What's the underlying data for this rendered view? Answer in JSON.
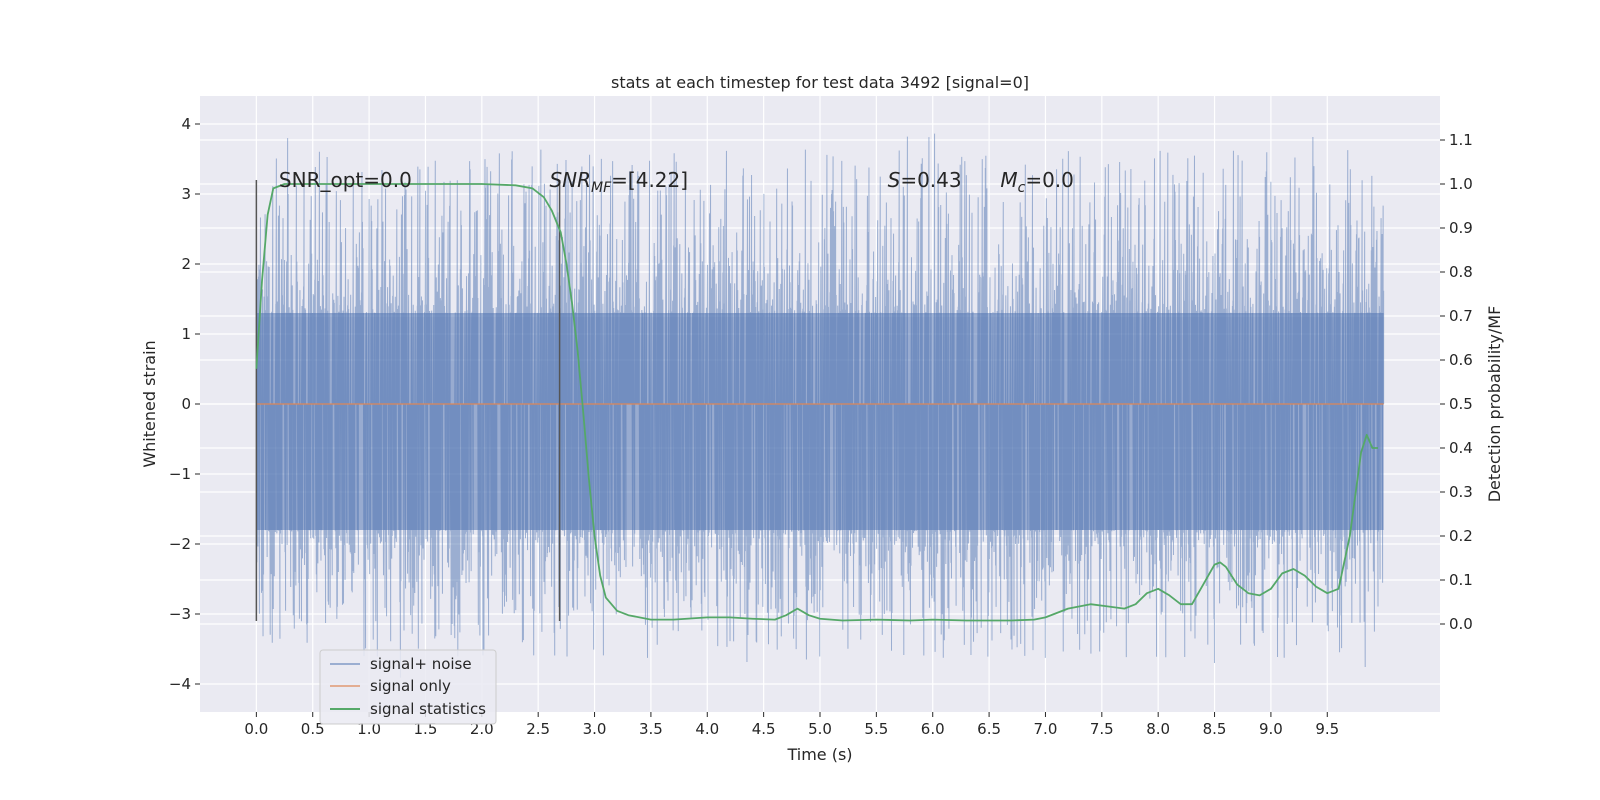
{
  "chart_data": {
    "type": "line",
    "title": "stats at each timestep for test data 3492 [signal=0]",
    "xlabel": "Time (s)",
    "ylabel_left": "Whitened strain",
    "ylabel_right": "Detection probability/MF",
    "xlim": [
      -0.5,
      10.5
    ],
    "ylim_left": [
      -4.4,
      4.4
    ],
    "ylim_right": [
      -0.2,
      1.2
    ],
    "x_ticks": [
      0.0,
      0.5,
      1.0,
      1.5,
      2.0,
      2.5,
      3.0,
      3.5,
      4.0,
      4.5,
      5.0,
      5.5,
      6.0,
      6.5,
      7.0,
      7.5,
      8.0,
      8.5,
      9.0,
      9.5
    ],
    "x_tick_labels": [
      "0.0",
      "0.5",
      "1.0",
      "1.5",
      "2.0",
      "2.5",
      "3.0",
      "3.5",
      "4.0",
      "4.5",
      "5.0",
      "5.5",
      "6.0",
      "6.5",
      "7.0",
      "7.5",
      "8.0",
      "8.5",
      "9.0",
      "9.5"
    ],
    "y_left_ticks": [
      -4,
      -3,
      -2,
      -1,
      0,
      1,
      2,
      3,
      4
    ],
    "y_left_tick_labels": [
      "−4",
      "−3",
      "−2",
      "−1",
      "0",
      "1",
      "2",
      "3",
      "4"
    ],
    "y_right_ticks": [
      0.0,
      0.1,
      0.2,
      0.3,
      0.4,
      0.5,
      0.6,
      0.7,
      0.8,
      0.9,
      1.0,
      1.1
    ],
    "y_right_tick_labels": [
      "0.0",
      "0.1",
      "0.2",
      "0.3",
      "0.4",
      "0.5",
      "0.6",
      "0.7",
      "0.8",
      "0.9",
      "1.0",
      "1.1"
    ],
    "grid": true,
    "legend_position": "lower-left",
    "annotations": [
      {
        "id": "snr-opt",
        "x": 0.2,
        "y": 3.2,
        "text": "SNR_opt=0.0"
      },
      {
        "id": "snr-mf",
        "x": 2.6,
        "y": 3.2,
        "main": "SNR",
        "sub": "MF",
        "rest": "=[4.22]"
      },
      {
        "id": "s-val",
        "x": 5.6,
        "y": 3.2,
        "main": "S",
        "sub": "",
        "rest": "=0.43"
      },
      {
        "id": "mc-val",
        "x": 6.6,
        "y": 3.2,
        "main": "M",
        "sub": "c",
        "rest": "=0.0"
      }
    ],
    "vertical_lines": [
      {
        "x": 0.0,
        "y_range": [
          -3.1,
          3.2
        ]
      },
      {
        "x": 2.69,
        "y_range": [
          -3.1,
          3.2
        ]
      }
    ],
    "series": [
      {
        "name": "signal+ noise",
        "axis": "left",
        "color": "#4c72b0",
        "kind": "noise",
        "x_range": [
          0.0,
          10.0
        ],
        "band": [
          -1.8,
          1.3
        ],
        "extremes": [
          -3.95,
          4.05
        ]
      },
      {
        "name": "signal only",
        "axis": "left",
        "color": "#dd8452",
        "x": [
          0.0,
          10.0
        ],
        "y": [
          0.0,
          0.0
        ]
      },
      {
        "name": "signal statistics",
        "axis": "right",
        "color": "#55a868",
        "x": [
          0.0,
          0.05,
          0.1,
          0.15,
          0.25,
          0.5,
          1.0,
          1.5,
          2.0,
          2.3,
          2.45,
          2.55,
          2.62,
          2.7,
          2.75,
          2.8,
          2.85,
          2.9,
          2.95,
          3.0,
          3.05,
          3.1,
          3.2,
          3.3,
          3.5,
          3.7,
          4.0,
          4.2,
          4.4,
          4.6,
          4.7,
          4.8,
          4.9,
          5.0,
          5.2,
          5.5,
          5.8,
          6.0,
          6.3,
          6.7,
          6.9,
          7.0,
          7.2,
          7.4,
          7.55,
          7.7,
          7.8,
          7.9,
          8.0,
          8.1,
          8.2,
          8.3,
          8.4,
          8.5,
          8.55,
          8.6,
          8.7,
          8.8,
          8.9,
          9.0,
          9.1,
          9.2,
          9.3,
          9.4,
          9.5,
          9.6,
          9.7,
          9.8,
          9.85,
          9.9,
          9.95
        ],
        "y": [
          0.58,
          0.78,
          0.93,
          0.99,
          1.0,
          1.0,
          1.0,
          1.0,
          1.0,
          0.997,
          0.99,
          0.97,
          0.94,
          0.89,
          0.82,
          0.73,
          0.62,
          0.48,
          0.33,
          0.2,
          0.11,
          0.06,
          0.03,
          0.02,
          0.01,
          0.01,
          0.015,
          0.015,
          0.012,
          0.01,
          0.02,
          0.035,
          0.02,
          0.012,
          0.008,
          0.01,
          0.008,
          0.01,
          0.008,
          0.008,
          0.01,
          0.015,
          0.035,
          0.045,
          0.04,
          0.035,
          0.045,
          0.07,
          0.08,
          0.065,
          0.045,
          0.045,
          0.09,
          0.135,
          0.14,
          0.13,
          0.09,
          0.07,
          0.065,
          0.08,
          0.115,
          0.125,
          0.11,
          0.085,
          0.07,
          0.08,
          0.2,
          0.39,
          0.43,
          0.4,
          0.4
        ]
      }
    ]
  }
}
